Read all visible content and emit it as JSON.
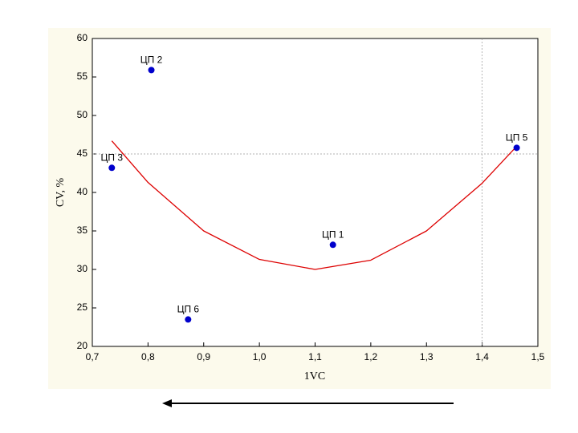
{
  "chart_data": {
    "type": "scatter",
    "xlabel": "1VC",
    "ylabel": "CV, %",
    "xlim": [
      0.7,
      1.5
    ],
    "xticks": [
      {
        "value": 0.7,
        "label": "0,7"
      },
      {
        "value": 0.8,
        "label": "0,8"
      },
      {
        "value": 0.9,
        "label": "0,9"
      },
      {
        "value": 1.0,
        "label": "1,0"
      },
      {
        "value": 1.1,
        "label": "1,1"
      },
      {
        "value": 1.2,
        "label": "1,2"
      },
      {
        "value": 1.3,
        "label": "1,3"
      },
      {
        "value": 1.4,
        "label": "1,4"
      },
      {
        "value": 1.5,
        "label": "1,5"
      }
    ],
    "ylim": [
      20,
      60
    ],
    "yticks": [
      20,
      25,
      30,
      35,
      40,
      45,
      50,
      55,
      60
    ],
    "ref_x": 1.4,
    "ref_y": 45,
    "points": {
      "color": "#0000cc",
      "x": [
        1.132,
        0.806,
        0.735,
        1.462,
        0.872
      ],
      "values": [
        33.2,
        55.9,
        43.2,
        45.8,
        23.5
      ],
      "labels": [
        "ЦП 1",
        "ЦП 2",
        "ЦП 3",
        "ЦП 5",
        "ЦП 6"
      ]
    },
    "fit_curve": {
      "color": "#dd0000",
      "x": [
        0.735,
        0.8,
        0.9,
        1.0,
        1.1,
        1.2,
        1.3,
        1.4,
        1.462
      ],
      "values": [
        46.7,
        41.3,
        35.0,
        31.3,
        30.0,
        31.2,
        35.0,
        41.2,
        46.0
      ]
    }
  }
}
